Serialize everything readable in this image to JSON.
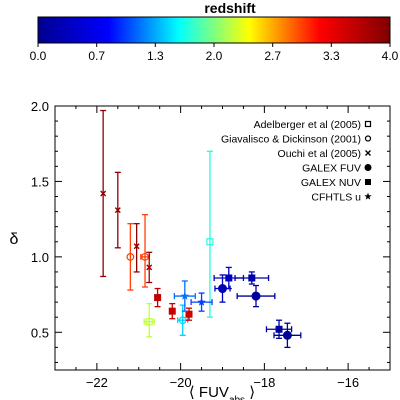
{
  "colorbar": {
    "title": "redshift",
    "ticks": [
      {
        "value": 0.0,
        "label": "0.0"
      },
      {
        "value": 0.667,
        "label": "0.7"
      },
      {
        "value": 1.333,
        "label": "1.3"
      },
      {
        "value": 2.0,
        "label": "2.0"
      },
      {
        "value": 2.667,
        "label": "2.7"
      },
      {
        "value": 3.333,
        "label": "3.3"
      },
      {
        "value": 4.0,
        "label": "4.0"
      }
    ],
    "range": [
      0,
      4
    ],
    "colormap": [
      "#00008f",
      "#0000ff",
      "#00ffff",
      "#ffff00",
      "#ff0000",
      "#800000"
    ]
  },
  "chart_data": {
    "type": "scatter",
    "title": "",
    "xlabel": "⟨ FUV",
    "xlabel_sub": "abs",
    "xlabel_close": " ⟩",
    "ylabel": "δ",
    "xlim": [
      -23,
      -15
    ],
    "ylim": [
      0.25,
      2.0
    ],
    "x_ticks": [
      {
        "value": -22,
        "label": "−22"
      },
      {
        "value": -20,
        "label": "−20"
      },
      {
        "value": -18,
        "label": "−18"
      },
      {
        "value": -16,
        "label": "−16"
      }
    ],
    "y_ticks": [
      {
        "value": 0.5,
        "label": "0.5"
      },
      {
        "value": 1.0,
        "label": "1.0"
      },
      {
        "value": 1.5,
        "label": "1.5"
      },
      {
        "value": 2.0,
        "label": "2.0"
      }
    ],
    "legend": {
      "position": "top-right",
      "entries": [
        {
          "label": "Adelberger et al (2005)",
          "marker": "square-open"
        },
        {
          "label": "Giavalisco & Dickinson (2001)",
          "marker": "circle-open"
        },
        {
          "label": "Ouchi et al (2005)",
          "marker": "x"
        },
        {
          "label": "GALEX FUV",
          "marker": "circle-filled"
        },
        {
          "label": "GALEX NUV",
          "marker": "square-filled"
        },
        {
          "label": "CFHTLS u",
          "marker": "star"
        }
      ]
    },
    "series": [
      {
        "name": "Adelberger et al (2005)",
        "marker": "square-open",
        "points": [
          {
            "x": -20.75,
            "y": 0.57,
            "xerr": 0.12,
            "yerr_low": 0.1,
            "yerr_high": 0.12,
            "z": 2.2
          },
          {
            "x": -19.3,
            "y": 1.1,
            "xerr": 0.0,
            "yerr_low": 0.5,
            "yerr_high": 0.6,
            "z": 1.7
          }
        ]
      },
      {
        "name": "Giavalisco & Dickinson (2001)",
        "marker": "circle-open",
        "points": [
          {
            "x": -21.2,
            "y": 1.0,
            "xerr": 0.0,
            "yerr_low": 0.22,
            "yerr_high": 0.22,
            "z": 3.0
          },
          {
            "x": -20.85,
            "y": 1.0,
            "xerr": 0.1,
            "yerr_low": 0.2,
            "yerr_high": 0.28,
            "z": 3.0
          },
          {
            "x": -19.95,
            "y": 0.58,
            "xerr": 0.12,
            "yerr_low": 0.1,
            "yerr_high": 0.1,
            "z": 1.45
          }
        ]
      },
      {
        "name": "Ouchi et al (2005)",
        "marker": "x",
        "points": [
          {
            "x": -21.85,
            "y": 1.42,
            "xerr": 0.0,
            "yerr_low": 0.55,
            "yerr_high": 0.55,
            "z": 3.9
          },
          {
            "x": -21.5,
            "y": 1.31,
            "xerr": 0.0,
            "yerr_low": 0.25,
            "yerr_high": 0.25,
            "z": 3.9
          },
          {
            "x": -21.05,
            "y": 1.07,
            "xerr": 0.0,
            "yerr_low": 0.17,
            "yerr_high": 0.15,
            "z": 3.9
          },
          {
            "x": -20.75,
            "y": 0.93,
            "xerr": 0.0,
            "yerr_low": 0.1,
            "yerr_high": 0.1,
            "z": 3.8
          }
        ]
      },
      {
        "name": "GALEX FUV",
        "marker": "circle-filled",
        "points": [
          {
            "x": -19.0,
            "y": 0.79,
            "xerr": 0.18,
            "yerr_low": 0.09,
            "yerr_high": 0.09,
            "z": 0.3
          },
          {
            "x": -18.2,
            "y": 0.74,
            "xerr": 0.45,
            "yerr_low": 0.07,
            "yerr_high": 0.07,
            "z": 0.1
          },
          {
            "x": -17.45,
            "y": 0.48,
            "xerr": 0.32,
            "yerr_low": 0.08,
            "yerr_high": 0.08,
            "z": 0.05
          }
        ]
      },
      {
        "name": "GALEX NUV",
        "marker": "square-filled",
        "points": [
          {
            "x": -18.85,
            "y": 0.86,
            "xerr": 0.35,
            "yerr_low": 0.07,
            "yerr_high": 0.07,
            "z": 0.35
          },
          {
            "x": -18.3,
            "y": 0.86,
            "xerr": 0.4,
            "yerr_low": 0.04,
            "yerr_high": 0.04,
            "z": 0.2
          },
          {
            "x": -17.65,
            "y": 0.52,
            "xerr": 0.3,
            "yerr_low": 0.06,
            "yerr_high": 0.06,
            "z": 0.1
          },
          {
            "x": -20.55,
            "y": 0.73,
            "xerr": 0.0,
            "yerr_low": 0.06,
            "yerr_high": 0.06,
            "z": 3.6
          },
          {
            "x": -20.2,
            "y": 0.64,
            "xerr": 0.0,
            "yerr_low": 0.05,
            "yerr_high": 0.05,
            "z": 3.55
          },
          {
            "x": -19.8,
            "y": 0.62,
            "xerr": 0.0,
            "yerr_low": 0.04,
            "yerr_high": 0.04,
            "z": 3.5
          }
        ]
      },
      {
        "name": "CFHTLS u",
        "marker": "star",
        "points": [
          {
            "x": -19.9,
            "y": 0.74,
            "xerr": 0.25,
            "yerr_low": 0.1,
            "yerr_high": 0.1,
            "z": 1.15
          },
          {
            "x": -19.5,
            "y": 0.7,
            "xerr": 0.25,
            "yerr_low": 0.06,
            "yerr_high": 0.06,
            "z": 1.0
          }
        ]
      }
    ]
  }
}
